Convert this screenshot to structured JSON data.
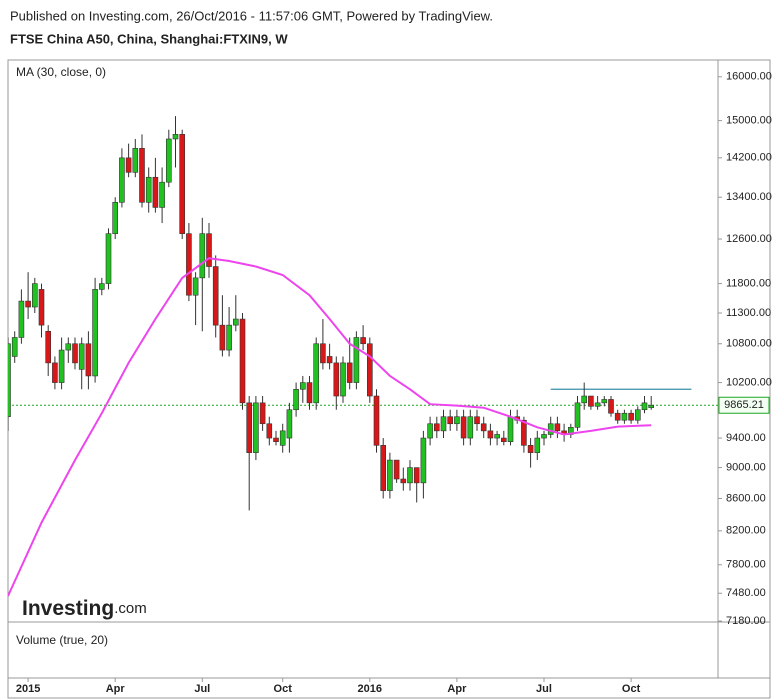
{
  "chart_data": {
    "type": "candlestick",
    "subtitle": "Published on Investing.com, 26/Oct/2016 - 11:57:06 GMT, Powered by TradingView.",
    "title": "FTSE China A50, China, Shanghai:FTXIN9, W",
    "log_scale": true,
    "grid": false,
    "up_color": "#22c122",
    "down_color": "#d81818",
    "categories": [
      null,
      null,
      null,
      "2015",
      null,
      null,
      null,
      null,
      null,
      null,
      null,
      null,
      null,
      null,
      null,
      null,
      "Apr",
      null,
      null,
      null,
      null,
      null,
      null,
      null,
      null,
      null,
      null,
      null,
      null,
      "Jul",
      null,
      null,
      null,
      null,
      null,
      null,
      null,
      null,
      null,
      null,
      null,
      "Oct",
      null,
      null,
      null,
      null,
      null,
      null,
      null,
      null,
      null,
      null,
      null,
      null,
      "2016",
      null,
      null,
      null,
      null,
      null,
      null,
      null,
      null,
      null,
      null,
      null,
      null,
      "Apr",
      null,
      null,
      null,
      null,
      null,
      null,
      null,
      null,
      null,
      null,
      null,
      null,
      "Jul",
      null,
      null,
      null,
      null,
      null,
      null,
      null,
      null,
      null,
      null,
      null,
      null,
      "Oct",
      null,
      null,
      null
    ],
    "open": [
      9700,
      10600,
      10900,
      11500,
      11400,
      11700,
      11000,
      10500,
      10200,
      10700,
      10800,
      10400,
      10800,
      10300,
      11700,
      11800,
      12700,
      13300,
      14200,
      13900,
      14400,
      13300,
      13800,
      13200,
      13700,
      14600,
      14700,
      12700,
      11600,
      11900,
      12700,
      12100,
      11100,
      10700,
      11100,
      11200,
      9900,
      9200,
      9900,
      9600,
      9400,
      9300,
      9400,
      9800,
      10100,
      10200,
      9900,
      10800,
      10600,
      10500,
      10000,
      10500,
      10200,
      10900,
      10800,
      10000,
      9300,
      8700,
      9100,
      8850,
      8800,
      9000,
      8800,
      9400,
      9600,
      9500,
      9700,
      9600,
      9700,
      9400,
      9700,
      9600,
      9500,
      9400,
      9400,
      9350,
      9700,
      9650,
      9300,
      9200,
      9400,
      9450,
      9600,
      9500,
      9450,
      9550,
      9900,
      10000,
      9850,
      9900,
      9950,
      9750,
      9650,
      9750,
      9650,
      9800,
      9830
    ],
    "high": [
      10900,
      11000,
      11700,
      12000,
      11900,
      11800,
      11100,
      10600,
      10900,
      10900,
      10900,
      10900,
      11000,
      11900,
      11900,
      12800,
      13400,
      14400,
      14500,
      14600,
      14700,
      14000,
      14200,
      14000,
      14800,
      15100,
      14800,
      12900,
      12000,
      13000,
      12900,
      12300,
      11600,
      11400,
      11600,
      11300,
      10000,
      10000,
      10000,
      9700,
      9500,
      9600,
      9900,
      10200,
      10300,
      10300,
      10900,
      11200,
      10800,
      10600,
      10600,
      10900,
      11000,
      11100,
      10900,
      10100,
      9400,
      9200,
      9100,
      9000,
      9100,
      9000,
      9500,
      9700,
      9700,
      9800,
      9800,
      9800,
      9800,
      9800,
      9800,
      9700,
      9600,
      9500,
      9500,
      9800,
      9800,
      9700,
      9400,
      9500,
      9500,
      9700,
      9700,
      9600,
      9600,
      10000,
      10200,
      10000,
      10000,
      10000,
      10000,
      9800,
      9800,
      9800,
      9850,
      10000,
      10000
    ],
    "low": [
      9500,
      10500,
      10800,
      11200,
      11300,
      10900,
      10300,
      10100,
      10100,
      10500,
      10400,
      10100,
      10100,
      10200,
      11600,
      11700,
      12600,
      13200,
      13800,
      13800,
      13200,
      13100,
      13100,
      12900,
      13600,
      14000,
      12600,
      11500,
      11100,
      11000,
      11900,
      10900,
      10600,
      10600,
      11000,
      9800,
      8450,
      9100,
      9500,
      9300,
      9300,
      9200,
      9200,
      9700,
      9900,
      9800,
      9800,
      10400,
      10400,
      9800,
      9900,
      10100,
      10100,
      10700,
      9900,
      9200,
      8600,
      8600,
      8800,
      8700,
      8700,
      8550,
      8600,
      9300,
      9400,
      9400,
      9500,
      9500,
      9300,
      9300,
      9500,
      9400,
      9300,
      9300,
      9300,
      9300,
      9600,
      9200,
      9000,
      9100,
      9300,
      9400,
      9400,
      9350,
      9400,
      9500,
      9800,
      9800,
      9800,
      9850,
      9700,
      9600,
      9600,
      9600,
      9600,
      9750,
      9800
    ],
    "close": [
      10800,
      10900,
      11500,
      11400,
      11800,
      11100,
      10500,
      10200,
      10700,
      10800,
      10500,
      10800,
      10300,
      11700,
      11800,
      12700,
      13300,
      14200,
      13900,
      14400,
      13300,
      13800,
      13200,
      13700,
      14600,
      14700,
      12700,
      11600,
      11900,
      12700,
      12100,
      11100,
      10700,
      11100,
      11200,
      9900,
      9200,
      9900,
      9600,
      9400,
      9350,
      9500,
      9800,
      10100,
      10200,
      9900,
      10800,
      10500,
      10500,
      10000,
      10500,
      10200,
      10900,
      10800,
      10000,
      9300,
      8700,
      9100,
      8850,
      8800,
      9000,
      8800,
      9400,
      9600,
      9500,
      9700,
      9600,
      9700,
      9400,
      9700,
      9600,
      9500,
      9400,
      9450,
      9350,
      9700,
      9650,
      9300,
      9200,
      9400,
      9450,
      9600,
      9500,
      9450,
      9550,
      9900,
      10000,
      9850,
      9900,
      9950,
      9750,
      9650,
      9750,
      9650,
      9800,
      9900,
      9865.21
    ],
    "ma": {
      "name": "MA (30, close, 0)",
      "color": "#ee44ee",
      "x": [
        0,
        5,
        10,
        14,
        18,
        22,
        26,
        30,
        33,
        37,
        41,
        45,
        48,
        51,
        54,
        57,
        60,
        63,
        67,
        71,
        75,
        79,
        83,
        87,
        91,
        96
      ],
      "values": [
        7450,
        8300,
        9100,
        9750,
        10500,
        11200,
        11900,
        12250,
        12200,
        12100,
        11950,
        11600,
        11200,
        10800,
        10600,
        10300,
        10100,
        9880,
        9860,
        9830,
        9700,
        9550,
        9450,
        9500,
        9560,
        9580
      ]
    },
    "resistance": {
      "value": 10100,
      "x": [
        81,
        102
      ],
      "color": "#3a8fa8"
    },
    "last_price": {
      "value": 9865.21,
      "color": "#1fa81f"
    },
    "ylim": [
      7170,
      16400
    ],
    "yticks": [
      {
        "value": 16000,
        "label": "16000.00"
      },
      {
        "value": 15000,
        "label": "15000.00"
      },
      {
        "value": 14200,
        "label": "14200.00"
      },
      {
        "value": 13400,
        "label": "13400.00"
      },
      {
        "value": 12600,
        "label": "12600.00"
      },
      {
        "value": 11800,
        "label": "11800.00"
      },
      {
        "value": 11300,
        "label": "11300.00"
      },
      {
        "value": 10800,
        "label": "10800.00"
      },
      {
        "value": 10200,
        "label": "10200.00"
      },
      {
        "value": 9400,
        "label": "9400.00"
      },
      {
        "value": 9000,
        "label": "9000.00"
      },
      {
        "value": 8600,
        "label": "8600.00"
      },
      {
        "value": 8200,
        "label": "8200.00"
      },
      {
        "value": 7800,
        "label": "7800.00"
      },
      {
        "value": 7480,
        "label": "7480.00"
      },
      {
        "value": 7180,
        "label": "7180.00"
      }
    ],
    "volume_title": "Volume (true, 20)"
  },
  "logo": [
    "Investing",
    ".com"
  ]
}
